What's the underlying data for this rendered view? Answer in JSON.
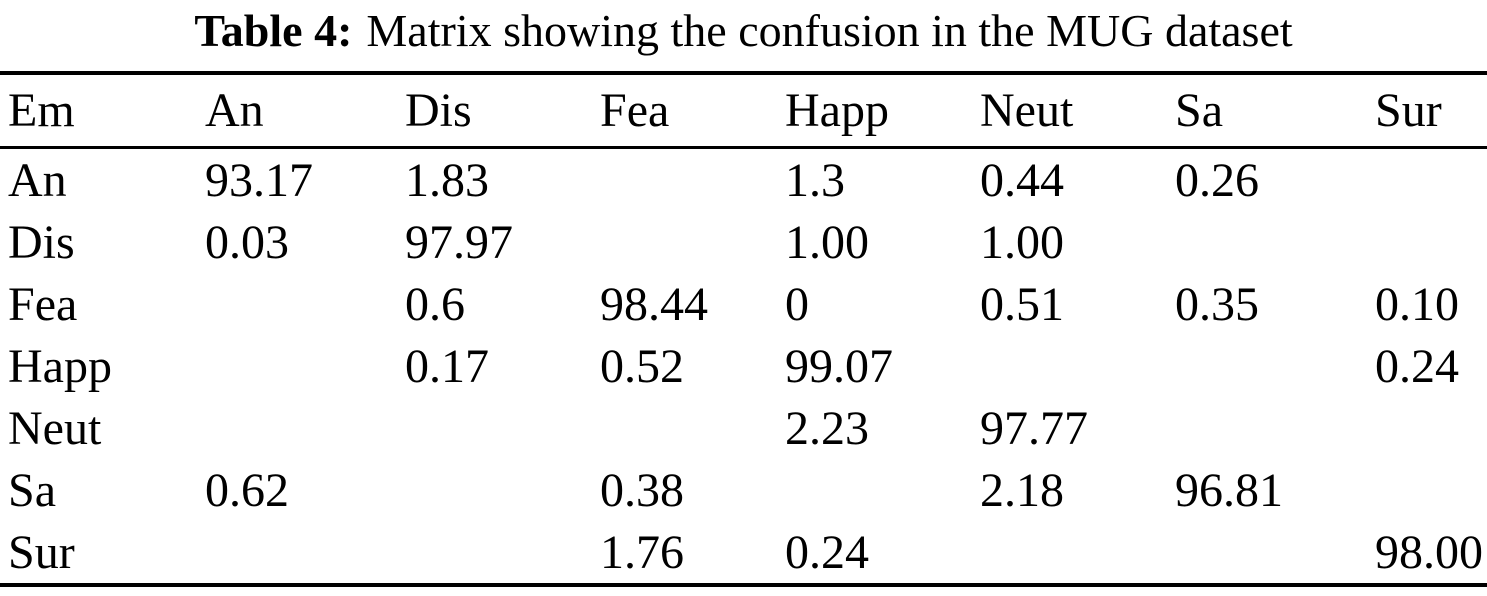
{
  "caption": {
    "label": "Table 4:",
    "text": "Matrix showing the confusion in the MUG dataset"
  },
  "chart_data": {
    "type": "table",
    "title": "Table 4: Matrix showing the confusion in the MUG dataset",
    "columns": [
      "Em",
      "An",
      "Dis",
      "Fea",
      "Happ",
      "Neut",
      "Sa",
      "Sur"
    ],
    "rows": [
      {
        "label": "An",
        "values": [
          "93.17",
          "1.83",
          "",
          "1.3",
          "0.44",
          "0.26",
          ""
        ]
      },
      {
        "label": "Dis",
        "values": [
          "0.03",
          "97.97",
          "",
          "1.00",
          "1.00",
          "",
          ""
        ]
      },
      {
        "label": "Fea",
        "values": [
          "",
          "0.6",
          "98.44",
          "0",
          "0.51",
          "0.35",
          "0.10"
        ]
      },
      {
        "label": "Happ",
        "values": [
          "",
          "0.17",
          "0.52",
          "99.07",
          "",
          "",
          "0.24"
        ]
      },
      {
        "label": "Neut",
        "values": [
          "",
          "",
          "",
          "2.23",
          "97.77",
          "",
          ""
        ]
      },
      {
        "label": "Sa",
        "values": [
          "0.62",
          "",
          "0.38",
          "",
          "2.18",
          "96.81",
          ""
        ]
      },
      {
        "label": "Sur",
        "values": [
          "",
          "",
          "1.76",
          "0.24",
          "",
          "",
          "98.00"
        ]
      }
    ]
  }
}
